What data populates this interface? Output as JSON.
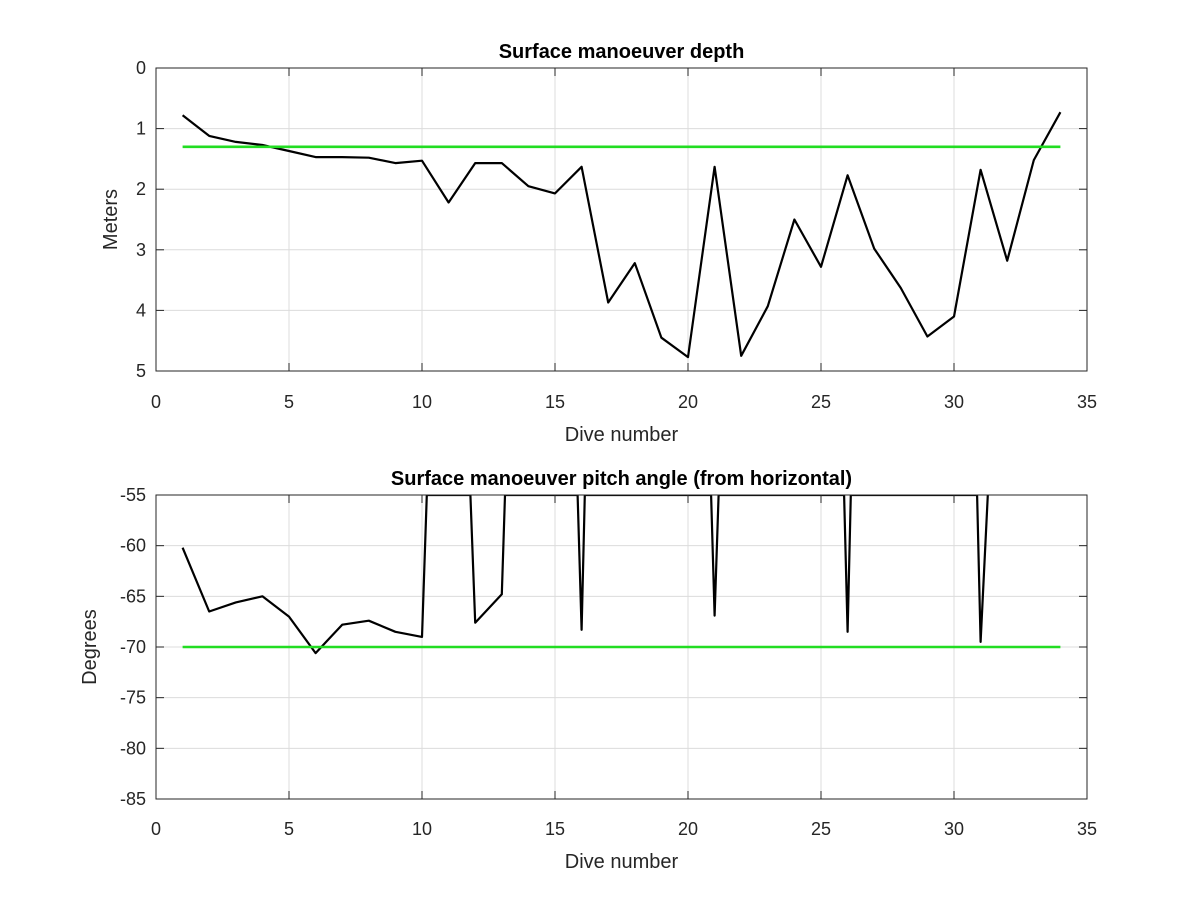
{
  "chart_data": [
    {
      "type": "line",
      "title": "Surface manoeuver depth",
      "xlabel": "Dive number",
      "ylabel": "Meters",
      "xlim": [
        0,
        35
      ],
      "ylim": [
        0,
        5
      ],
      "y_reversed": true,
      "grid": true,
      "xticks": [
        "0",
        "5",
        "10",
        "15",
        "20",
        "25",
        "30",
        "35"
      ],
      "yticks": [
        "0",
        "1",
        "2",
        "3",
        "4",
        "5"
      ],
      "series": [
        {
          "color": "#000000",
          "x": [
            1,
            2,
            3,
            4,
            5,
            6,
            7,
            8,
            9,
            10,
            11,
            12,
            13,
            14,
            15,
            16,
            17,
            18,
            19,
            20,
            21,
            22,
            23,
            24,
            25,
            26,
            27,
            28,
            29,
            30,
            31,
            32,
            33,
            34
          ],
          "values": [
            0.78,
            1.12,
            1.22,
            1.27,
            1.37,
            1.47,
            1.47,
            1.48,
            1.57,
            1.53,
            2.22,
            1.57,
            1.57,
            1.95,
            2.07,
            1.63,
            3.87,
            3.22,
            4.45,
            4.77,
            1.63,
            4.75,
            3.93,
            2.5,
            3.28,
            1.77,
            2.98,
            3.63,
            4.43,
            4.1,
            1.68,
            3.18,
            1.52,
            0.73
          ]
        },
        {
          "color": "#22dd22",
          "x": [
            1,
            34
          ],
          "values": [
            1.3,
            1.3
          ]
        }
      ]
    },
    {
      "type": "line",
      "title": "Surface manoeuver pitch angle (from horizontal)",
      "xlabel": "Dive number",
      "ylabel": "Degrees",
      "xlim": [
        0,
        35
      ],
      "ylim": [
        -85,
        -55
      ],
      "grid": true,
      "xticks": [
        "0",
        "5",
        "10",
        "15",
        "20",
        "25",
        "30",
        "35"
      ],
      "yticks": [
        "-55",
        "-60",
        "-65",
        "-70",
        "-75",
        "-80",
        "-85"
      ],
      "series": [
        {
          "color": "#000000",
          "x": [
            1,
            2,
            3,
            4,
            5,
            6,
            7,
            8,
            9,
            10,
            10.18,
            11.82,
            12,
            13,
            13.12,
            15.85,
            16,
            16.12,
            20.87,
            21,
            21.15,
            25.87,
            26,
            26.12,
            30.87,
            31,
            31.27
          ],
          "values": [
            -60.2,
            -66.5,
            -65.6,
            -65,
            -67,
            -70.6,
            -67.8,
            -67.4,
            -68.5,
            -69,
            -55,
            -55,
            -67.6,
            -64.8,
            -55,
            -55,
            -68.3,
            -55,
            -55,
            -66.9,
            -55,
            -55,
            -68.5,
            -55,
            -55,
            -69.5,
            -55
          ]
        },
        {
          "color": "#22dd22",
          "x": [
            1,
            34
          ],
          "values": [
            -70,
            -70
          ]
        }
      ]
    }
  ]
}
